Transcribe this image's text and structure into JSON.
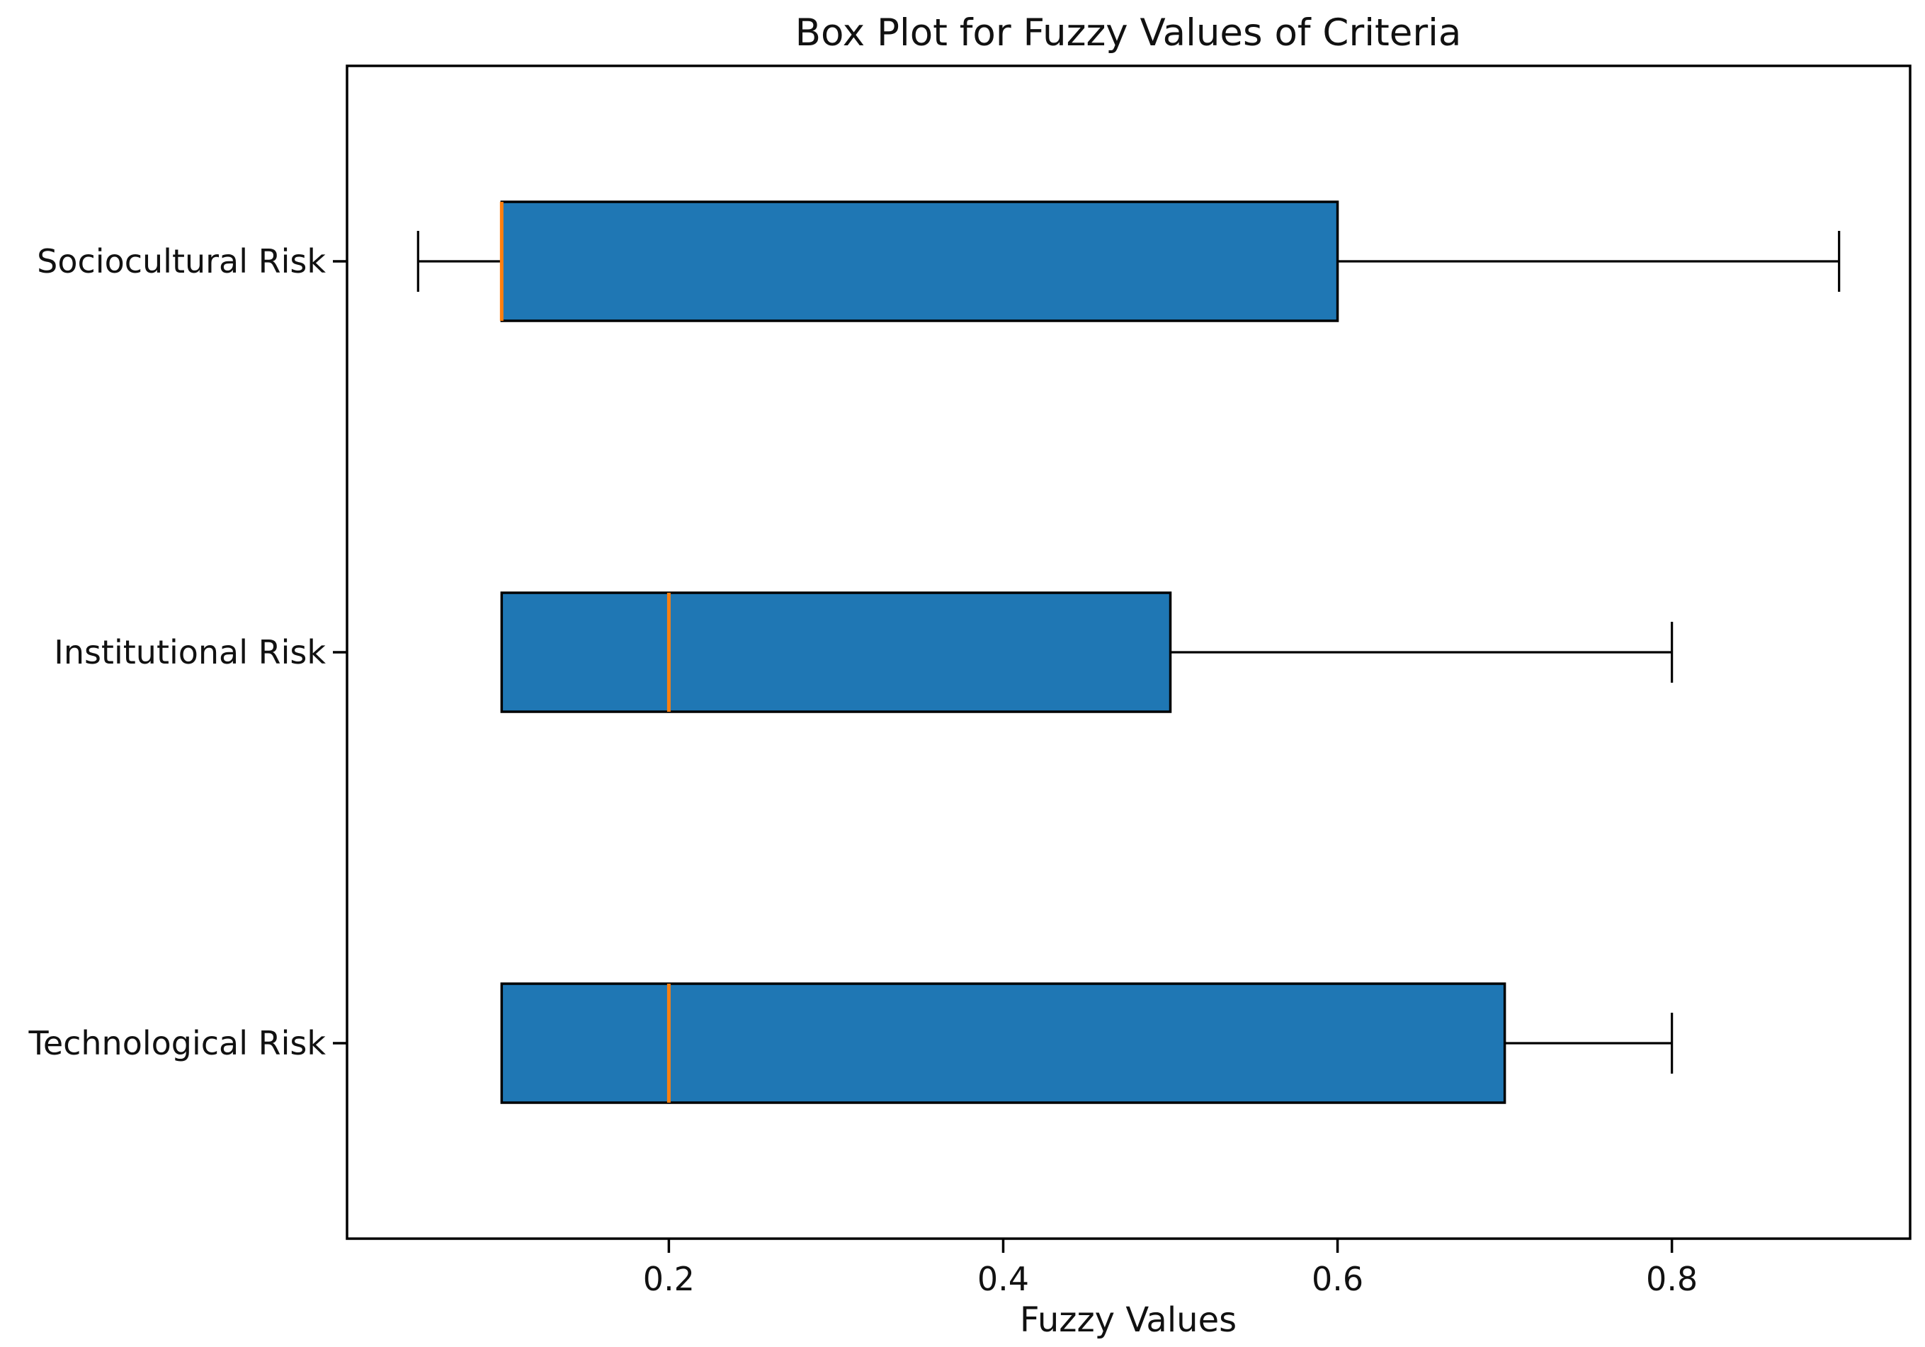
{
  "figure": {
    "background": "#ffffff"
  },
  "chart_data": {
    "type": "box",
    "orientation": "horizontal",
    "title": "Box Plot for Fuzzy Values of Criteria",
    "xlabel": "Fuzzy Values",
    "ylabel": "",
    "grid": false,
    "legend": false,
    "categories": [
      "Sociocultural Risk",
      "Institutional Risk",
      "Technological Risk"
    ],
    "series": [
      {
        "name": "Sociocultural Risk",
        "whislo": 0.05,
        "q1": 0.1,
        "med": 0.1,
        "q3": 0.6,
        "whishi": 0.9
      },
      {
        "name": "Institutional Risk",
        "whislo": 0.1,
        "q1": 0.1,
        "med": 0.2,
        "q3": 0.5,
        "whishi": 0.8
      },
      {
        "name": "Technological Risk",
        "whislo": 0.1,
        "q1": 0.1,
        "med": 0.2,
        "q3": 0.7,
        "whishi": 0.8
      }
    ],
    "x_ticks": [
      0.2,
      0.4,
      0.6,
      0.8
    ],
    "x_tick_labels": [
      "0.2",
      "0.4",
      "0.6",
      "0.8"
    ],
    "xlim": [
      0.0075,
      0.9425
    ],
    "colors": {
      "box_fill": "#1f77b4",
      "box_edge": "#000000",
      "median": "#ff7f0e",
      "whisker": "#000000",
      "cap": "#000000",
      "spine": "#000000",
      "text": "#111111",
      "background": "#ffffff"
    }
  }
}
